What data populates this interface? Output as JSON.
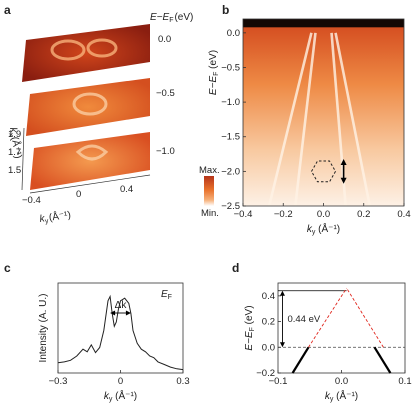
{
  "figure": {
    "panels": {
      "a": {
        "letter": "a",
        "energy_axis_label": "E−E",
        "energy_axis_sub": "F",
        "energy_axis_unit": "(eV)",
        "slice_labels": [
          "0.0",
          "−0.5",
          "−1.0"
        ],
        "kx_label": "k",
        "kx_sub": "x",
        "kx_unit": "(Å⁻¹)",
        "kx_ticks": [
          "1.9",
          "1.7",
          "1.5"
        ],
        "ky_label": "k",
        "ky_sub": "y",
        "ky_unit": "(Å⁻¹)",
        "ky_ticks": [
          "−0.4",
          "0",
          "0.4"
        ]
      },
      "colorbar": {
        "max_label": "Max.",
        "min_label": "Min."
      },
      "b": {
        "letter": "b"
      },
      "c": {
        "letter": "c",
        "delta_k_label": "Δk",
        "ef_label": "E",
        "ef_sub": "F"
      },
      "d": {
        "letter": "d",
        "gap_label": "0.44 eV"
      }
    }
  },
  "chart_data": [
    {
      "id": "b",
      "type": "heatmap",
      "title": "",
      "xlabel": "k_y (Å⁻¹)",
      "ylabel": "E−E_F (eV)",
      "xlim": [
        -0.4,
        0.4
      ],
      "ylim": [
        -2.5,
        0.2
      ],
      "x_ticks": [
        -0.4,
        -0.2,
        0.0,
        0.2,
        0.4
      ],
      "x_tick_labels": [
        "−0.4",
        "−0.2",
        "0.0",
        "0.2",
        "0.4"
      ],
      "y_ticks": [
        0.0,
        -0.5,
        -1.0,
        -1.5,
        -2.0,
        -2.5
      ],
      "y_tick_labels": [
        "0.0",
        "−0.5",
        "−1.0",
        "−1.5",
        "−2.0",
        "−2.5"
      ],
      "band_dispersion_lines": [
        {
          "x": [
            -0.27,
            -0.06
          ],
          "y": [
            -2.5,
            0.0
          ]
        },
        {
          "x": [
            0.23,
            0.06
          ],
          "y": [
            -2.5,
            0.0
          ]
        },
        {
          "x": [
            -0.14,
            -0.04
          ],
          "y": [
            -2.5,
            0.0
          ]
        },
        {
          "x": [
            0.11,
            0.04
          ],
          "y": [
            -2.5,
            0.0
          ]
        }
      ],
      "hexagon_center": [
        0.0,
        -2.0
      ],
      "hexagon_radius": 0.06,
      "arrow": {
        "x": 0.1,
        "y": [
          -1.85,
          -2.15
        ]
      },
      "colorscale": [
        "#ffffff",
        "#f6b07a",
        "#e8702a",
        "#b5341a"
      ]
    },
    {
      "id": "c",
      "type": "line",
      "title": "",
      "xlabel": "k_y (Å⁻¹)",
      "ylabel": "Intensity (A. U.)",
      "xlim": [
        -0.3,
        0.3
      ],
      "x_ticks": [
        -0.3,
        0.0,
        0.3
      ],
      "x_tick_labels": [
        "−0.3",
        "0",
        "0.3"
      ],
      "grid": false,
      "x": [
        -0.3,
        -0.27,
        -0.24,
        -0.21,
        -0.18,
        -0.16,
        -0.14,
        -0.12,
        -0.1,
        -0.08,
        -0.06,
        -0.05,
        -0.04,
        -0.03,
        -0.02,
        -0.01,
        0.0,
        0.02,
        0.04,
        0.05,
        0.06,
        0.08,
        0.1,
        0.12,
        0.14,
        0.16,
        0.18,
        0.21,
        0.24,
        0.27,
        0.3
      ],
      "y": [
        0.12,
        0.13,
        0.15,
        0.2,
        0.28,
        0.25,
        0.33,
        0.24,
        0.3,
        0.5,
        0.85,
        0.9,
        0.7,
        0.55,
        0.6,
        0.75,
        0.85,
        0.88,
        0.82,
        0.7,
        0.5,
        0.35,
        0.28,
        0.25,
        0.2,
        0.18,
        0.13,
        0.1,
        0.07,
        0.05,
        0.04
      ],
      "delta_k_span": [
        -0.05,
        0.05
      ]
    },
    {
      "id": "d",
      "type": "line",
      "title": "",
      "xlabel": "k_y (Å⁻¹)",
      "ylabel": "E−E_F (eV)",
      "xlim": [
        -0.1,
        0.1
      ],
      "ylim": [
        -0.2,
        0.5
      ],
      "x_ticks": [
        -0.1,
        0.0,
        0.1
      ],
      "x_tick_labels": [
        "−0.1",
        "0.0",
        "0.1"
      ],
      "y_ticks": [
        0.4,
        0.2,
        0.0,
        -0.2
      ],
      "y_tick_labels": [
        "0.4",
        "0.2",
        "0.0",
        "−0.2"
      ],
      "series": [
        {
          "x": [
            -0.077,
            -0.052
          ],
          "y": [
            -0.2,
            0.0
          ],
          "style": "solid",
          "color": "#000000"
        },
        {
          "x": [
            0.077,
            0.052
          ],
          "y": [
            -0.2,
            0.0
          ],
          "style": "solid",
          "color": "#000000"
        },
        {
          "x": [
            -0.052,
            0.008
          ],
          "y": [
            0.0,
            0.46
          ],
          "style": "dashed",
          "color": "#e0241b"
        },
        {
          "x": [
            0.066,
            0.008
          ],
          "y": [
            0.0,
            0.46
          ],
          "style": "dashed",
          "color": "#e0241b"
        }
      ],
      "fermi_level": 0.0,
      "dirac_point": 0.44,
      "gap": 0.44
    }
  ]
}
